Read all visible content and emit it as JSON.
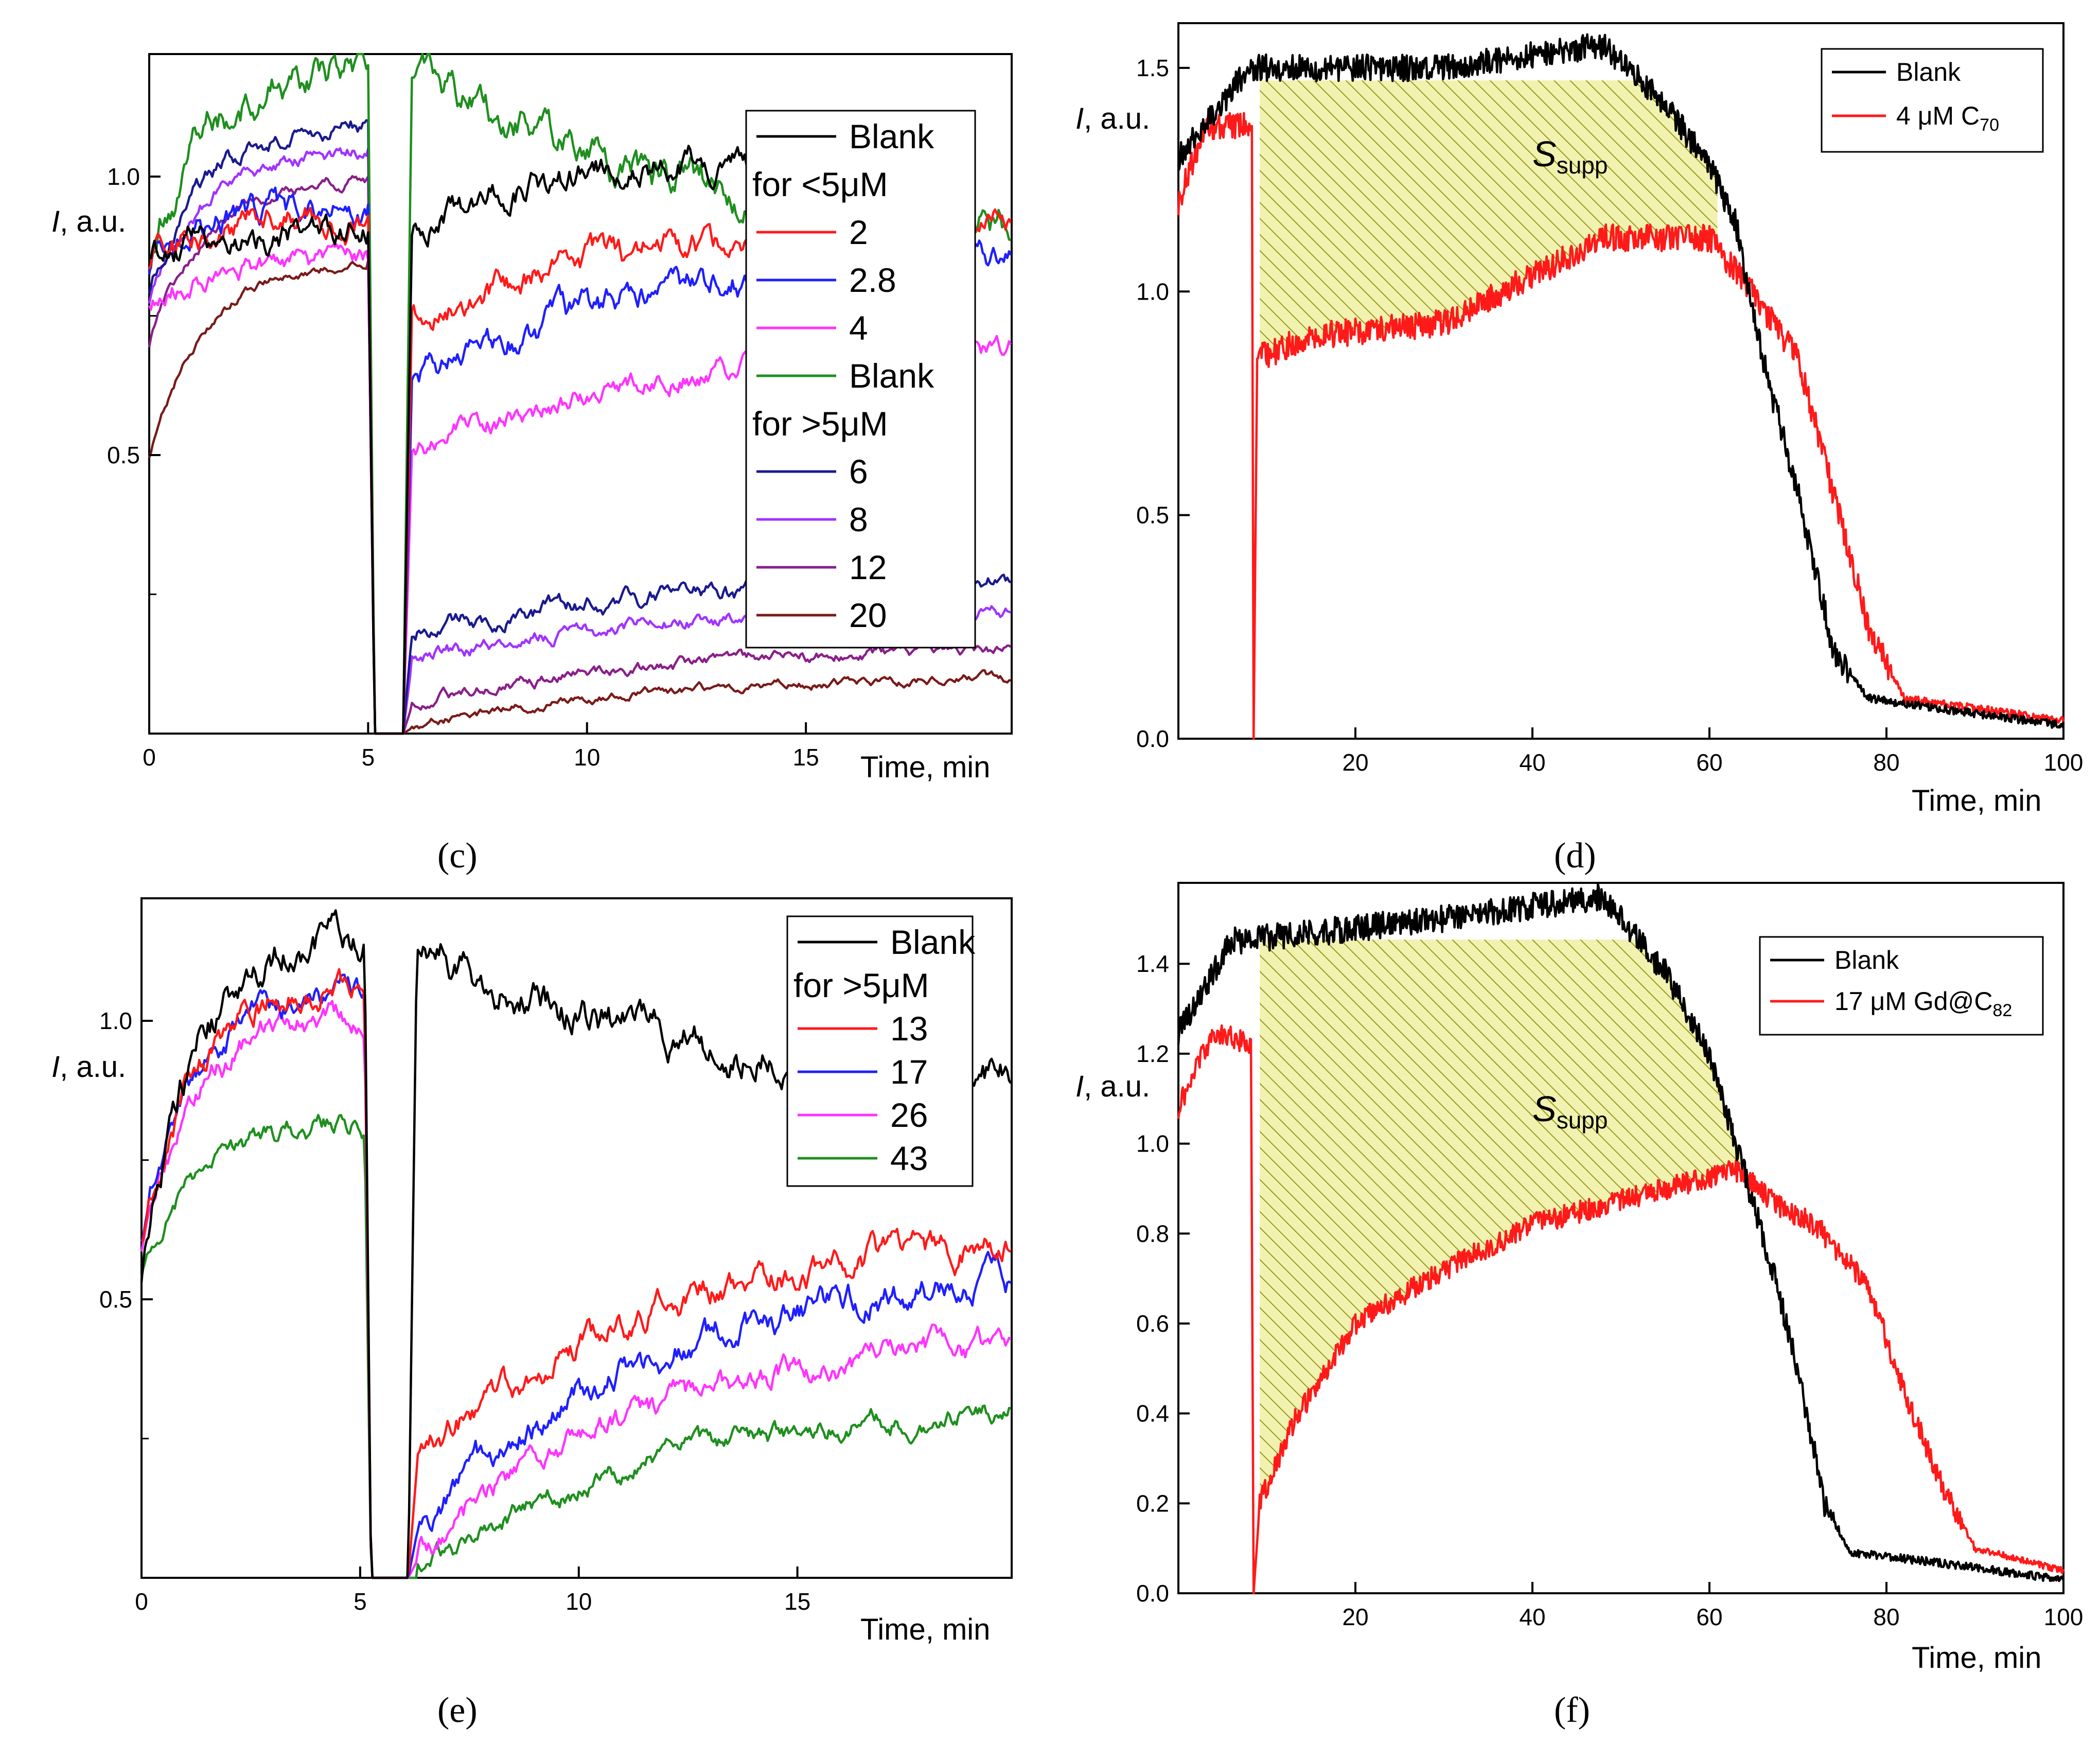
{
  "figure": {
    "panel_labels": [
      "(c)",
      "(d)",
      "(e)",
      "(f)"
    ]
  },
  "colors": {
    "black": "#000000",
    "red": "#ff1a1a",
    "blue": "#1f1fff",
    "magenta": "#ff33ff",
    "green": "#1f8f1f",
    "navy": "#1a1a8f",
    "purple": "#a033ff",
    "violet": "#8a1f8a",
    "maroon": "#7a1a1a",
    "hatch": "#9a9a20",
    "hatch_bg": "#f2f2b0"
  },
  "chart_data": [
    {
      "panel": "(c)",
      "type": "line",
      "title": "",
      "xlabel": "Time, min",
      "ylabel_italic": "I",
      "ylabel_rest": ", a.u.",
      "xlim": [
        0,
        19.7
      ],
      "ylim": [
        0,
        1.22
      ],
      "xticks": [
        0,
        5,
        10,
        15
      ],
      "yticks": [
        0.5,
        1.0
      ],
      "yticks_minor": [
        0.25,
        0.75
      ],
      "grid": false,
      "legend_position": "right",
      "legend": [
        {
          "label": "Blank",
          "color": "black",
          "line": true
        },
        {
          "label": "for <5μM",
          "color": null,
          "line": false
        },
        {
          "label": "2",
          "color": "red",
          "line": true
        },
        {
          "label": "2.8",
          "color": "blue",
          "line": true
        },
        {
          "label": "4",
          "color": "magenta",
          "line": true
        },
        {
          "label": "Blank",
          "color": "green",
          "line": true
        },
        {
          "label": "for >5μM",
          "color": null,
          "line": false
        },
        {
          "label": "6",
          "color": "navy",
          "line": true
        },
        {
          "label": "8",
          "color": "purple",
          "line": true
        },
        {
          "label": "12",
          "color": "violet",
          "line": true
        },
        {
          "label": "20",
          "color": "maroon",
          "line": true
        }
      ],
      "series": [
        {
          "name": "Blank",
          "color": "black",
          "start": 0.87,
          "pre": 0.9,
          "post_start": 0.9,
          "post_end": 1.03,
          "drop_at": 5.0,
          "recover_at": 5.8,
          "end_x": 13.9,
          "noise": 0.02
        },
        {
          "name": "2",
          "color": "red",
          "start": 0.85,
          "pre": 0.93,
          "post_start": 0.74,
          "post_end": 0.92,
          "drop_at": 5.0,
          "recover_at": 5.8,
          "end_x": 19.7,
          "noise": 0.02
        },
        {
          "name": "2.8",
          "color": "blue",
          "start": 0.84,
          "pre": 0.95,
          "post_start": 0.62,
          "post_end": 0.86,
          "drop_at": 5.0,
          "recover_at": 5.8,
          "end_x": 19.7,
          "noise": 0.02
        },
        {
          "name": "4",
          "color": "magenta",
          "start": 0.78,
          "pre": 0.85,
          "post_start": 0.5,
          "post_end": 0.69,
          "drop_at": 5.0,
          "recover_at": 5.8,
          "end_x": 19.7,
          "noise": 0.015
        },
        {
          "name": "Blank",
          "color": "green",
          "start": 0.85,
          "pre": 1.2,
          "post_start": 1.2,
          "post_end": 0.92,
          "drop_at": 5.0,
          "recover_at": 5.8,
          "end_x": 19.7,
          "noise": 0.025
        },
        {
          "name": "6",
          "color": "navy",
          "start": 0.8,
          "pre": 1.1,
          "post_start": 0.18,
          "post_end": 0.27,
          "drop_at": 5.0,
          "recover_at": 5.8,
          "end_x": 19.7,
          "noise": 0.012
        },
        {
          "name": "8",
          "color": "purple",
          "start": 0.78,
          "pre": 1.05,
          "post_start": 0.13,
          "post_end": 0.22,
          "drop_at": 5.0,
          "recover_at": 5.8,
          "end_x": 19.7,
          "noise": 0.01
        },
        {
          "name": "12",
          "color": "violet",
          "start": 0.7,
          "pre": 1.0,
          "post_start": 0.05,
          "post_end": 0.15,
          "drop_at": 5.0,
          "recover_at": 5.8,
          "end_x": 19.7,
          "noise": 0.008
        },
        {
          "name": "20",
          "color": "maroon",
          "start": 0.5,
          "pre": 0.85,
          "post_start": 0.01,
          "post_end": 0.1,
          "drop_at": 5.0,
          "recover_at": 5.8,
          "end_x": 19.7,
          "noise": 0.006
        }
      ]
    },
    {
      "panel": "(d)",
      "type": "line",
      "title": "",
      "xlabel": "Time, min",
      "ylabel_italic": "I",
      "ylabel_rest": ", a.u.",
      "xlim": [
        0,
        100
      ],
      "ylim": [
        0,
        1.6
      ],
      "xticks": [
        20,
        40,
        60,
        80,
        100
      ],
      "yticks": [
        0.0,
        0.5,
        1.0,
        1.5
      ],
      "grid": false,
      "legend_position": "top-right",
      "annotation": {
        "main": "S",
        "sub": "supp",
        "x": 40,
        "y": 1.28
      },
      "legend": [
        {
          "label": "Blank",
          "color": "black",
          "line": true
        },
        {
          "label": "4 μM C",
          "sub": "70",
          "color": "red",
          "line": true
        }
      ],
      "series": [
        {
          "name": "Blank",
          "color": "black",
          "kind": "long_blank",
          "noise": 0.03,
          "profile": [
            [
              0,
              1.3
            ],
            [
              8,
              1.5
            ],
            [
              30,
              1.5
            ],
            [
              48,
              1.55
            ],
            [
              55,
              1.42
            ],
            [
              60,
              1.28
            ],
            [
              63,
              1.15
            ],
            [
              66,
              0.85
            ],
            [
              70,
              0.55
            ],
            [
              74,
              0.2
            ],
            [
              78,
              0.09
            ],
            [
              85,
              0.07
            ],
            [
              100,
              0.03
            ]
          ]
        },
        {
          "name": "4 μM C70",
          "color": "red",
          "kind": "long_sample",
          "drop_at": 8.5,
          "noise": 0.03,
          "profile": [
            [
              0,
              1.2
            ],
            [
              3,
              1.37
            ],
            [
              8.3,
              1.37
            ],
            [
              8.5,
              0.0
            ],
            [
              8.9,
              0.85
            ],
            [
              15,
              0.9
            ],
            [
              30,
              0.93
            ],
            [
              48,
              1.12
            ],
            [
              60,
              1.12
            ],
            [
              64,
              1.02
            ],
            [
              70,
              0.85
            ],
            [
              74,
              0.55
            ],
            [
              78,
              0.25
            ],
            [
              82,
              0.09
            ],
            [
              100,
              0.04
            ]
          ]
        }
      ]
    },
    {
      "panel": "(e)",
      "type": "line",
      "title": "",
      "xlabel": "Time, min",
      "ylabel_italic": "I",
      "ylabel_rest": ", a.u.",
      "xlim": [
        0,
        19.9
      ],
      "ylim": [
        0,
        1.22
      ],
      "xticks": [
        0,
        5,
        10,
        15
      ],
      "yticks": [
        0.5,
        1.0
      ],
      "yticks_minor": [
        0.25,
        0.75
      ],
      "grid": false,
      "legend_position": "top-right",
      "legend": [
        {
          "label": "Blank",
          "color": "black",
          "line": true
        },
        {
          "label": "for >5μM",
          "color": null,
          "line": false
        },
        {
          "label": "13",
          "color": "red",
          "line": true
        },
        {
          "label": "17",
          "color": "blue",
          "line": true
        },
        {
          "label": "26",
          "color": "magenta",
          "line": true
        },
        {
          "label": "43",
          "color": "green",
          "line": true
        }
      ],
      "series": [
        {
          "name": "Blank",
          "color": "black",
          "start": 0.55,
          "pre": 1.17,
          "post_start": 1.15,
          "post_end": 0.9,
          "drop_at": 5.1,
          "recover_at": 6.1,
          "end_x": 19.9,
          "noise": 0.025
        },
        {
          "name": "13",
          "color": "red",
          "start": 0.62,
          "pre": 1.08,
          "post_start": 0.2,
          "post_end": 0.6,
          "drop_at": 5.1,
          "recover_at": 6.1,
          "end_x": 19.9,
          "noise": 0.02
        },
        {
          "name": "17",
          "color": "blue",
          "start": 0.62,
          "pre": 1.06,
          "post_start": 0.08,
          "post_end": 0.53,
          "drop_at": 5.1,
          "recover_at": 6.1,
          "end_x": 19.9,
          "noise": 0.02
        },
        {
          "name": "26",
          "color": "magenta",
          "start": 0.6,
          "pre": 1.02,
          "post_start": 0.03,
          "post_end": 0.42,
          "drop_at": 5.1,
          "recover_at": 6.1,
          "end_x": 19.9,
          "noise": 0.018
        },
        {
          "name": "43",
          "color": "green",
          "start": 0.55,
          "pre": 0.82,
          "post_start": 0.0,
          "post_end": 0.3,
          "drop_at": 5.1,
          "recover_at": 6.1,
          "end_x": 19.9,
          "noise": 0.015
        }
      ]
    },
    {
      "panel": "(f)",
      "type": "line",
      "title": "",
      "xlabel": "Time, min",
      "ylabel_italic": "I",
      "ylabel_rest": ", a.u.",
      "xlim": [
        0,
        100
      ],
      "ylim": [
        0,
        1.58
      ],
      "xticks": [
        20,
        40,
        60,
        80,
        100
      ],
      "yticks": [
        0.0,
        0.2,
        0.4,
        0.6,
        0.8,
        1.0,
        1.2,
        1.4
      ],
      "grid": false,
      "legend_position": "top-right",
      "annotation": {
        "main": "S",
        "sub": "supp",
        "x": 40,
        "y": 1.05
      },
      "legend": [
        {
          "label": "Blank",
          "color": "black",
          "line": true
        },
        {
          "label": "17 μM Gd@C",
          "sub": "82",
          "color": "red",
          "line": true
        }
      ],
      "series": [
        {
          "name": "Blank",
          "color": "black",
          "kind": "long_blank",
          "noise": 0.03,
          "profile": [
            [
              0,
              1.25
            ],
            [
              6,
              1.45
            ],
            [
              30,
              1.5
            ],
            [
              48,
              1.55
            ],
            [
              55,
              1.38
            ],
            [
              60,
              1.2
            ],
            [
              63,
              1.0
            ],
            [
              66,
              0.8
            ],
            [
              70,
              0.5
            ],
            [
              73,
              0.2
            ],
            [
              76,
              0.09
            ],
            [
              85,
              0.07
            ],
            [
              100,
              0.03
            ]
          ]
        },
        {
          "name": "17 μM Gd@C82",
          "color": "red",
          "kind": "long_sample",
          "drop_at": 8.5,
          "noise": 0.025,
          "profile": [
            [
              0,
              1.08
            ],
            [
              4,
              1.25
            ],
            [
              8.2,
              1.22
            ],
            [
              8.5,
              0.0
            ],
            [
              9.2,
              0.2
            ],
            [
              13,
              0.38
            ],
            [
              20,
              0.6
            ],
            [
              30,
              0.72
            ],
            [
              40,
              0.82
            ],
            [
              55,
              0.9
            ],
            [
              63,
              0.94
            ],
            [
              68,
              0.86
            ],
            [
              72,
              0.82
            ],
            [
              78,
              0.68
            ],
            [
              82,
              0.45
            ],
            [
              86,
              0.25
            ],
            [
              90,
              0.1
            ],
            [
              100,
              0.05
            ]
          ]
        }
      ]
    }
  ]
}
